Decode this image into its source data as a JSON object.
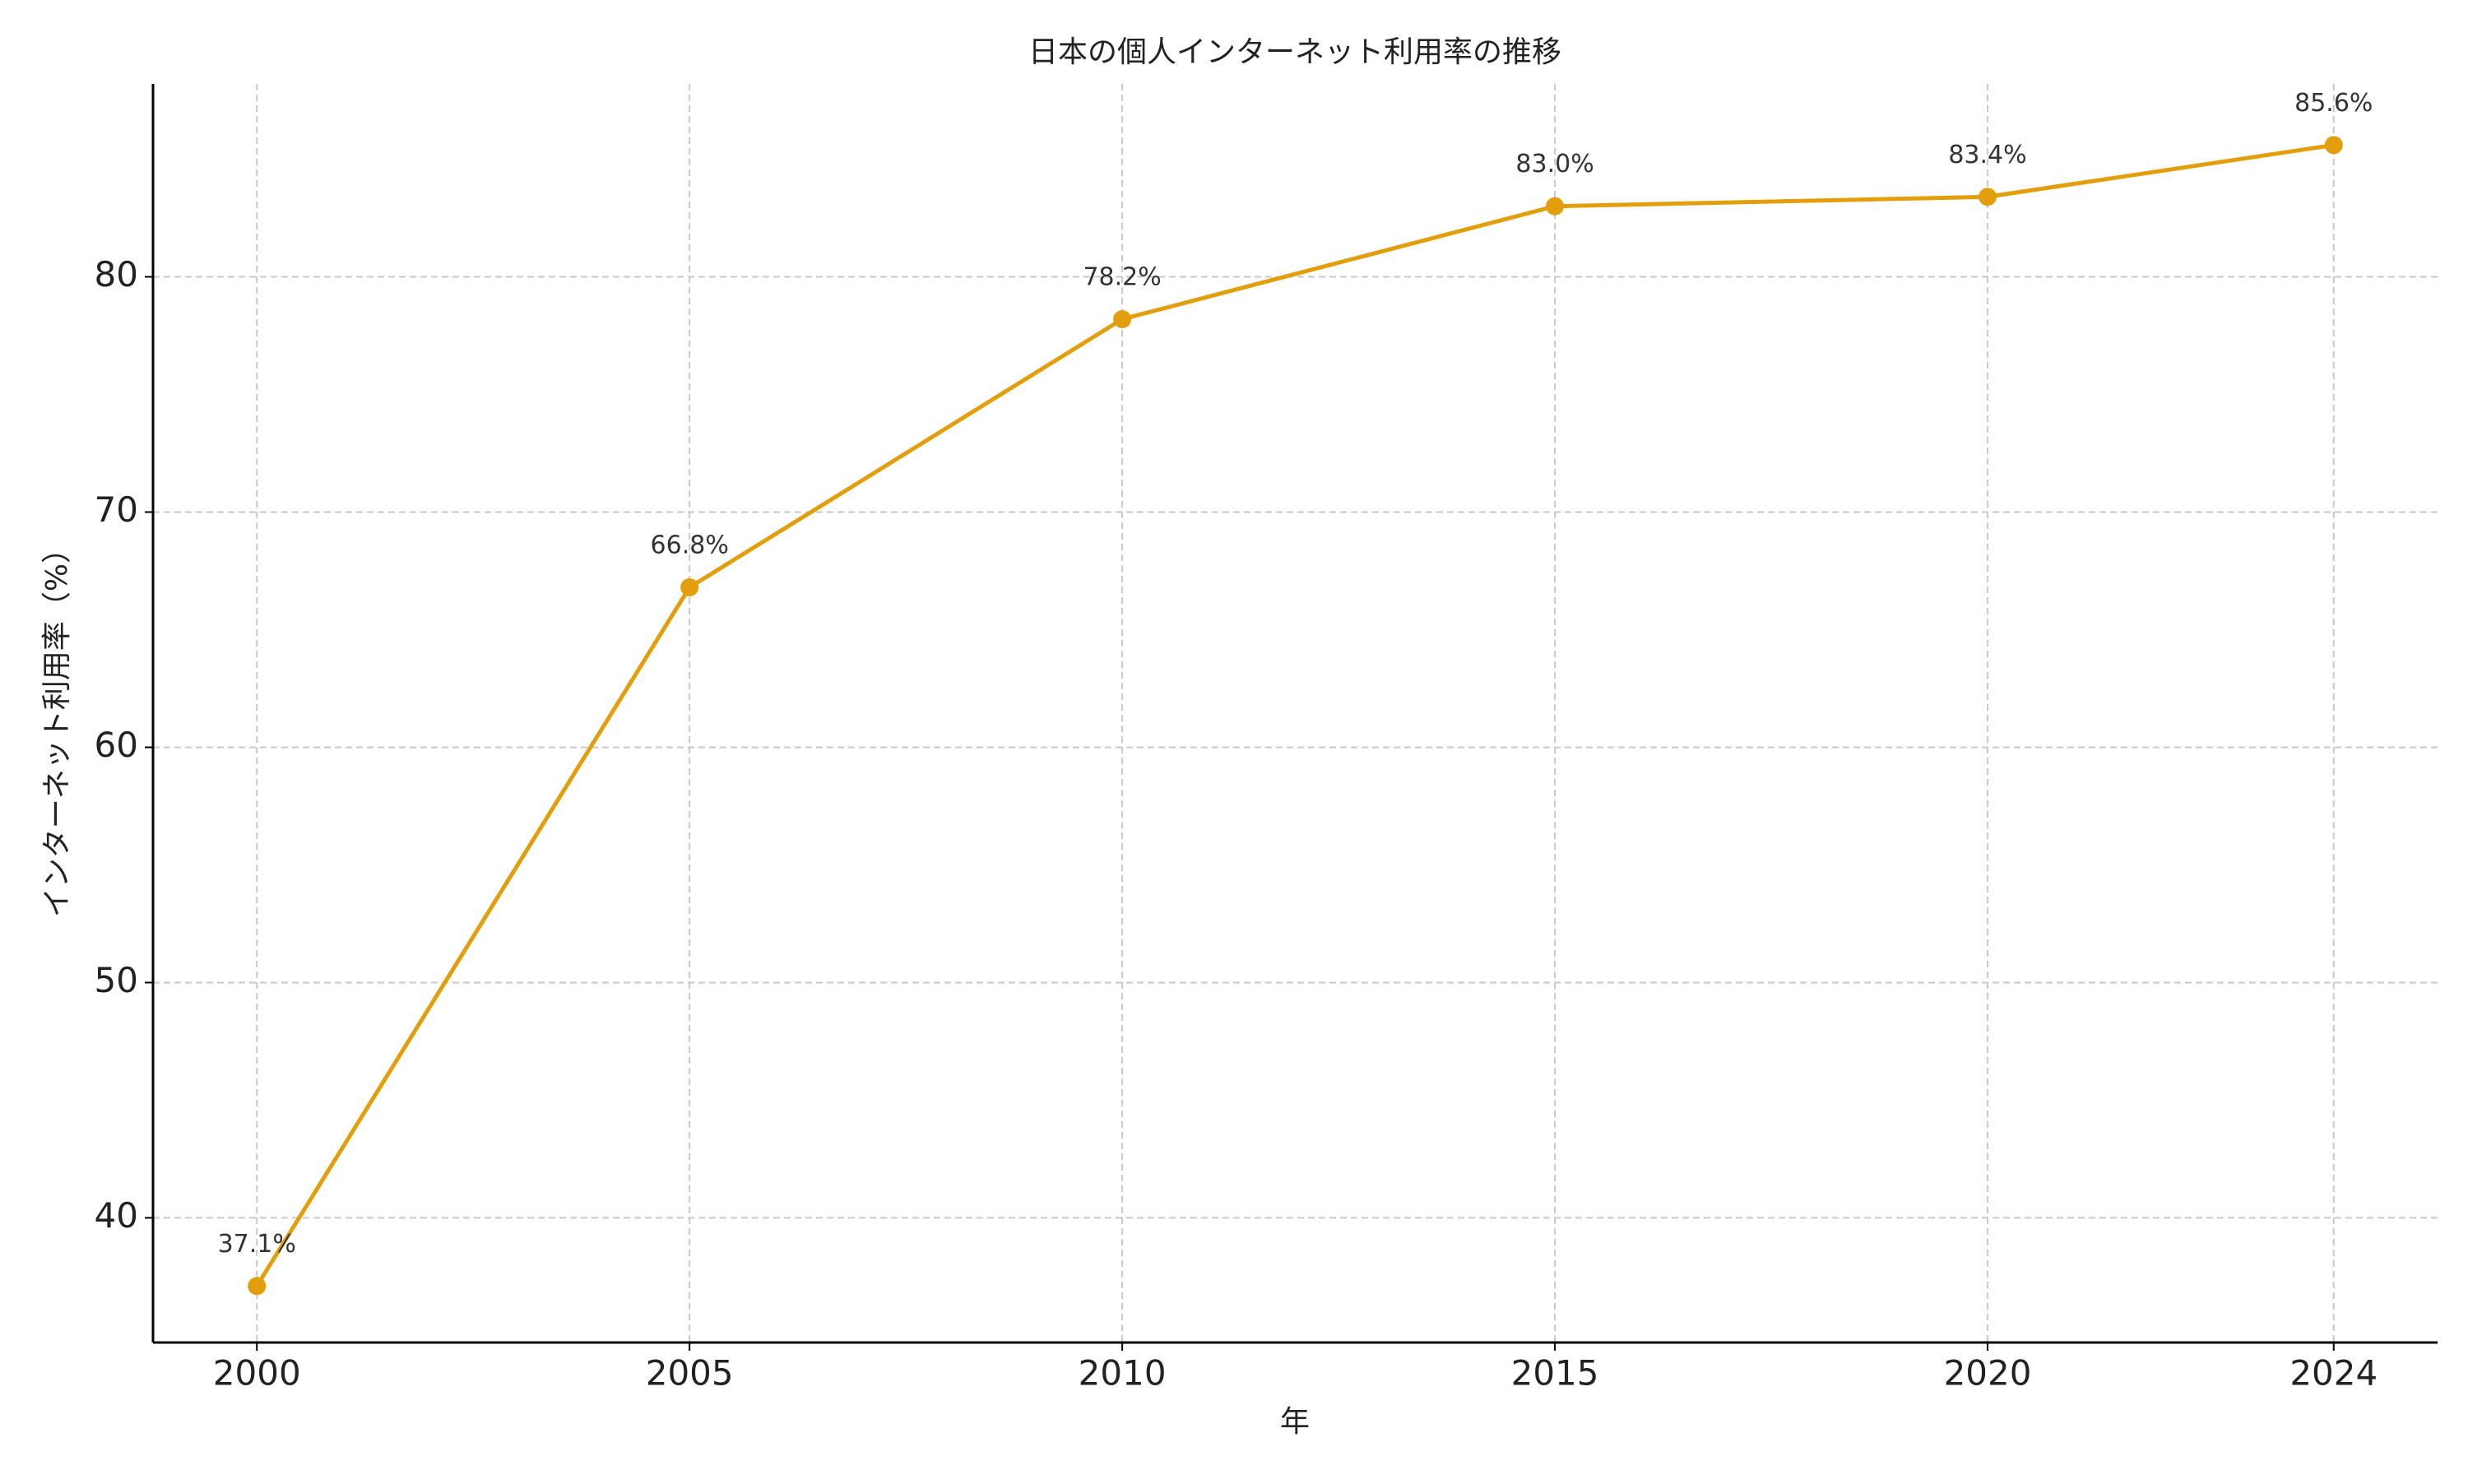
{
  "chart_data": {
    "type": "line",
    "title": "日本の個人インターネット利用率の推移",
    "x_label": "年",
    "y_label": "インターネット利用率（%）",
    "x": [
      2000,
      2005,
      2010,
      2015,
      2020,
      2024
    ],
    "series": [
      {
        "name": "インターネット利用率",
        "color": "#e39e0c",
        "values": [
          37.1,
          66.8,
          78.2,
          83.0,
          83.4,
          85.6
        ],
        "value_labels": [
          "37.1%",
          "66.8%",
          "78.2%",
          "83.0%",
          "83.4%",
          "85.6%"
        ]
      }
    ],
    "xlim": [
      1998.8,
      2025.2
    ],
    "xticks": [
      2000,
      2005,
      2010,
      2015,
      2020,
      2024
    ],
    "ylim": [
      34.7,
      88.2
    ],
    "yticks": [
      40,
      50,
      60,
      70,
      80
    ],
    "grid": true
  }
}
